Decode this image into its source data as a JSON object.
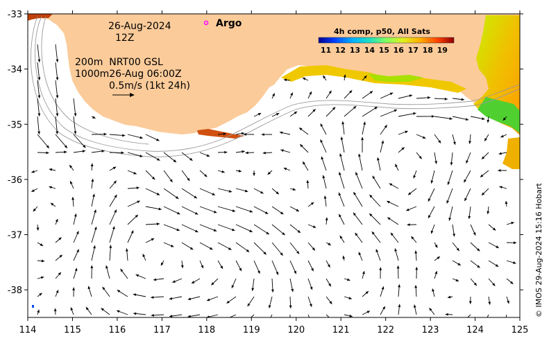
{
  "date_line": "26-Aug-2024",
  "time_line": "12Z",
  "depth_line1": "200m  NRT00 GSL",
  "depth_line2": "1000m26-Aug 06:00Z",
  "scale_label": "0.5m/s (1kt 24h)",
  "argo_label": "Argo",
  "credit": "© IMOS 29-Aug-2024 15:16 Hobart",
  "colorbar": {
    "title": "4h comp, p50, All Sats",
    "ticks": [
      "11",
      "12",
      "13",
      "14",
      "15",
      "16",
      "17",
      "18",
      "19"
    ],
    "range": [
      10.5,
      19.8
    ]
  },
  "axes": {
    "lon_ticks": [
      "114",
      "115",
      "116",
      "117",
      "118",
      "119",
      "120",
      "121",
      "122",
      "123",
      "124",
      "125"
    ],
    "lat_ticks": [
      "-33",
      "-34",
      "-35",
      "-36",
      "-37",
      "-38"
    ],
    "lon_range": [
      114,
      125
    ],
    "lat_range": [
      -33,
      -38.5
    ]
  },
  "colors": {
    "land": "#fbcb9a",
    "ocean": "#ffffff",
    "arrow": "#000000",
    "contour": "#9a9a9a",
    "argo": "#ff00ff"
  }
}
